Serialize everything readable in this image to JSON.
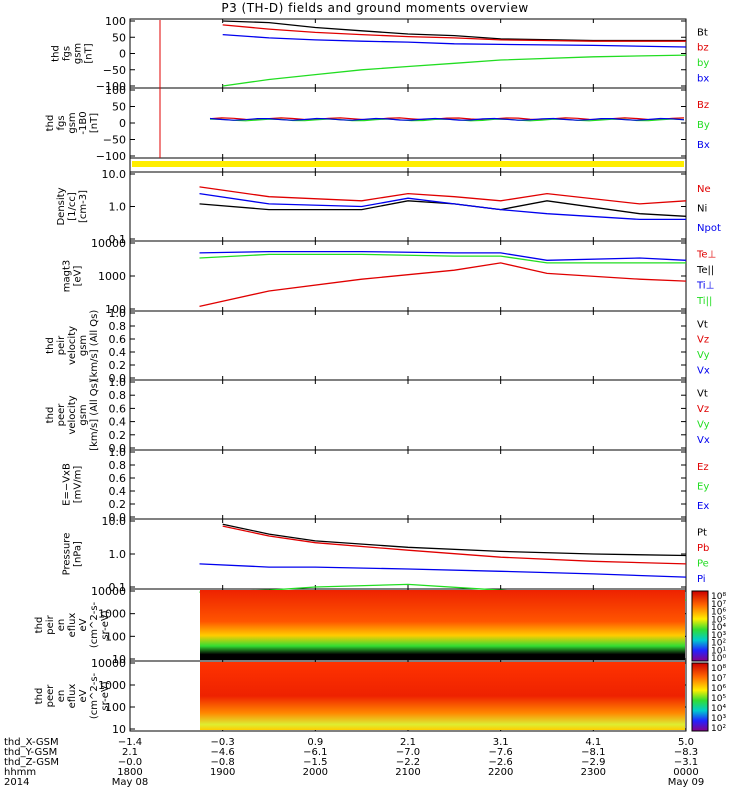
{
  "title": "P3 (TH-D) fields and ground moments overview",
  "colors": {
    "black": "#000000",
    "red": "#e00000",
    "green": "#22dd22",
    "blue": "#0000ee",
    "yellow": "#ffee00"
  },
  "panels": [
    {
      "id": "fgs",
      "ylabel": [
        "thd",
        "fgs",
        "gsm",
        "[nT]"
      ],
      "yticks": [
        "100",
        "50",
        "0",
        "−50",
        "−100"
      ],
      "legend": [
        {
          "t": "Bt",
          "c": "black"
        },
        {
          "t": "bz",
          "c": "red"
        },
        {
          "t": "by",
          "c": "green"
        },
        {
          "t": "bx",
          "c": "blue"
        }
      ]
    },
    {
      "id": "fgs2",
      "ylabel": [
        "thd",
        "fgs",
        "gsm",
        "-1B0",
        "[nT]"
      ],
      "yticks": [
        "100",
        "50",
        "0",
        "−50",
        "−100"
      ],
      "legend": [
        {
          "t": "Bz",
          "c": "red"
        },
        {
          "t": "By",
          "c": "green"
        },
        {
          "t": "Bx",
          "c": "blue"
        }
      ]
    },
    {
      "id": "flag",
      "ylabel": [],
      "yticks": [],
      "legend": []
    },
    {
      "id": "density",
      "ylabel": [
        "Density",
        "[1/cc]",
        "[cm-3]"
      ],
      "yticks": [
        "10.0",
        "1.0",
        "0.1"
      ],
      "legend": [
        {
          "t": "Ne",
          "c": "red"
        },
        {
          "t": "Ni",
          "c": "black"
        },
        {
          "t": "Npot",
          "c": "blue"
        }
      ]
    },
    {
      "id": "temp",
      "ylabel": [
        "magt3",
        "[eV]"
      ],
      "yticks": [
        "10000",
        "1000",
        "100"
      ],
      "legend": [
        {
          "t": "Te⊥",
          "c": "red"
        },
        {
          "t": "Te||",
          "c": "black"
        },
        {
          "t": "Ti⊥",
          "c": "blue"
        },
        {
          "t": "Ti||",
          "c": "green"
        }
      ]
    },
    {
      "id": "vi",
      "ylabel": [
        "thd",
        "peir",
        "velocity",
        "gsm",
        "[km/s] (All Qs)"
      ],
      "yticks": [
        "1.0",
        "0.8",
        "0.6",
        "0.4",
        "0.2",
        "0.0"
      ],
      "legend": [
        {
          "t": "Vt",
          "c": "black"
        },
        {
          "t": "Vz",
          "c": "red"
        },
        {
          "t": "Vy",
          "c": "green"
        },
        {
          "t": "Vx",
          "c": "blue"
        }
      ]
    },
    {
      "id": "ve",
      "ylabel": [
        "thd",
        "peer",
        "velocity",
        "gsm",
        "[km/s] (All Qs)"
      ],
      "yticks": [
        "1.0",
        "0.8",
        "0.6",
        "0.4",
        "0.2",
        "0.0"
      ],
      "legend": [
        {
          "t": "Vt",
          "c": "black"
        },
        {
          "t": "Vz",
          "c": "red"
        },
        {
          "t": "Vy",
          "c": "green"
        },
        {
          "t": "Vx",
          "c": "blue"
        }
      ]
    },
    {
      "id": "efield",
      "ylabel": [
        "E=−VxB",
        "[mV/m]"
      ],
      "yticks": [
        "1.0",
        "0.8",
        "0.6",
        "0.4",
        "0.2",
        "0.0"
      ],
      "legend": [
        {
          "t": "Ez",
          "c": "red"
        },
        {
          "t": "Ey",
          "c": "green"
        },
        {
          "t": "Ex",
          "c": "blue"
        }
      ]
    },
    {
      "id": "pressure",
      "ylabel": [
        "Pressure",
        "[nPa]"
      ],
      "yticks": [
        "10.0",
        "1.0",
        "0.1"
      ],
      "legend": [
        {
          "t": "Pt",
          "c": "black"
        },
        {
          "t": "Pb",
          "c": "red"
        },
        {
          "t": "Pe",
          "c": "green"
        },
        {
          "t": "Pi",
          "c": "blue"
        }
      ]
    },
    {
      "id": "ionspec",
      "ylabel": [
        "thd",
        "peir",
        "en",
        "eflux",
        "eV",
        "(cm^2-s-",
        "sr-eV)"
      ],
      "yticks": [
        "10000",
        "1000",
        "100",
        "10"
      ],
      "legend": []
    },
    {
      "id": "espec",
      "ylabel": [
        "thd",
        "peer",
        "en",
        "eflux",
        "eV",
        "(cm^2-s-",
        "sr-eV)"
      ],
      "yticks": [
        "10000",
        "1000",
        "100",
        "10"
      ],
      "legend": []
    }
  ],
  "colorbar1": [
    "10⁸",
    "10⁷",
    "10⁶",
    "10⁵",
    "10⁴",
    "10³",
    "10²",
    "10¹",
    "10⁰"
  ],
  "colorbar2": [
    "10⁸",
    "10⁷",
    "10⁶",
    "10⁵",
    "10⁴",
    "10³",
    "10²"
  ],
  "xaxis": {
    "rows": [
      {
        "label": "thd_X-GSM",
        "vals": [
          "−1.4",
          "−0.3",
          "0.9",
          "2.1",
          "3.1",
          "4.1",
          "5.0"
        ]
      },
      {
        "label": "thd_Y-GSM",
        "vals": [
          "2.1",
          "−4.6",
          "−6.1",
          "−7.0",
          "−7.6",
          "−8.1",
          "−8.3"
        ]
      },
      {
        "label": "thd_Z-GSM",
        "vals": [
          "−0.0",
          "−0.8",
          "−1.5",
          "−2.2",
          "−2.6",
          "−2.9",
          "−3.1"
        ]
      },
      {
        "label": "hhmm",
        "vals": [
          "1800",
          "1900",
          "2000",
          "2100",
          "2200",
          "2300",
          "0000"
        ]
      },
      {
        "label": "2014",
        "vals": [
          "May 08",
          "",
          "",
          "",
          "",
          "",
          "May 09"
        ]
      }
    ]
  },
  "chart_data": {
    "type": "line",
    "title": "P3 (TH-D) fields and ground moments overview",
    "x_time_range": [
      "2014-05-08 18:00",
      "2014-05-09 00:00"
    ],
    "series": [
      {
        "panel": "fgs",
        "name": "Bt",
        "x": [
          "19:00",
          "19:30",
          "20:00",
          "20:30",
          "21:00",
          "21:30",
          "22:00",
          "23:00",
          "00:00"
        ],
        "values": [
          100,
          95,
          80,
          70,
          60,
          55,
          45,
          40,
          40
        ]
      },
      {
        "panel": "fgs",
        "name": "bz",
        "x": [
          "19:00",
          "19:30",
          "20:00",
          "20:30",
          "21:00",
          "21:30",
          "22:00",
          "23:00",
          "00:00"
        ],
        "values": [
          88,
          75,
          65,
          58,
          52,
          48,
          42,
          38,
          38
        ]
      },
      {
        "panel": "fgs",
        "name": "by",
        "x": [
          "19:00",
          "19:30",
          "20:00",
          "20:30",
          "21:00",
          "21:30",
          "22:00",
          "23:00",
          "00:00"
        ],
        "values": [
          -100,
          -80,
          -65,
          -50,
          -40,
          -30,
          -20,
          -10,
          -5
        ]
      },
      {
        "panel": "fgs",
        "name": "bx",
        "x": [
          "19:00",
          "19:30",
          "20:00",
          "20:30",
          "21:00",
          "21:30",
          "22:00",
          "23:00",
          "00:00"
        ],
        "values": [
          58,
          48,
          42,
          38,
          35,
          30,
          28,
          25,
          20
        ]
      },
      {
        "panel": "density",
        "name": "Ne",
        "x": [
          "18:45",
          "19:30",
          "20:30",
          "21:00",
          "21:30",
          "22:00",
          "22:30",
          "23:30",
          "00:00"
        ],
        "values": [
          4,
          2,
          1.5,
          2.5,
          2,
          1.5,
          2.5,
          1.2,
          1.5
        ]
      },
      {
        "panel": "density",
        "name": "Ni",
        "x": [
          "18:45",
          "19:30",
          "20:30",
          "21:00",
          "21:30",
          "22:00",
          "22:30",
          "23:30",
          "00:00"
        ],
        "values": [
          1.2,
          0.8,
          0.8,
          1.5,
          1.2,
          0.8,
          1.5,
          0.6,
          0.5
        ]
      },
      {
        "panel": "density",
        "name": "Npot",
        "x": [
          "18:45",
          "19:30",
          "20:30",
          "21:00",
          "21:30",
          "22:00",
          "22:30",
          "23:30",
          "00:00"
        ],
        "values": [
          2.5,
          1.2,
          1,
          1.8,
          1.2,
          0.8,
          0.6,
          0.4,
          0.4
        ]
      },
      {
        "panel": "temp",
        "name": "Te⊥",
        "x": [
          "18:45",
          "19:30",
          "20:30",
          "21:30",
          "22:00",
          "22:30",
          "23:30",
          "00:00"
        ],
        "values": [
          120,
          350,
          800,
          1500,
          2500,
          1200,
          800,
          700
        ]
      },
      {
        "panel": "temp",
        "name": "Ti⊥",
        "x": [
          "18:45",
          "19:30",
          "20:30",
          "21:30",
          "22:00",
          "22:30",
          "23:30",
          "00:00"
        ],
        "values": [
          5000,
          5500,
          5500,
          5000,
          5000,
          3000,
          3500,
          3000
        ]
      },
      {
        "panel": "temp",
        "name": "Ti||",
        "x": [
          "18:45",
          "19:30",
          "20:30",
          "21:30",
          "22:00",
          "22:30",
          "23:30",
          "00:00"
        ],
        "values": [
          3500,
          4500,
          4500,
          4000,
          4000,
          2500,
          2500,
          2500
        ]
      },
      {
        "panel": "pressure",
        "name": "Pt",
        "x": [
          "19:00",
          "19:30",
          "20:00",
          "21:00",
          "22:00",
          "23:00",
          "00:00"
        ],
        "values": [
          8,
          4,
          2.5,
          1.6,
          1.2,
          1,
          0.9
        ]
      },
      {
        "panel": "pressure",
        "name": "Pb",
        "x": [
          "19:00",
          "19:30",
          "20:00",
          "21:00",
          "22:00",
          "23:00",
          "00:00"
        ],
        "values": [
          7,
          3.5,
          2.2,
          1.3,
          0.8,
          0.6,
          0.5
        ]
      },
      {
        "panel": "pressure",
        "name": "Pe",
        "x": [
          "18:45",
          "19:30",
          "20:00",
          "21:00",
          "22:00",
          "23:00",
          "00:00"
        ],
        "values": [
          0.07,
          0.08,
          0.1,
          0.12,
          0.08,
          0.05,
          0.04
        ]
      },
      {
        "panel": "pressure",
        "name": "Pi",
        "x": [
          "18:45",
          "19:30",
          "20:00",
          "21:00",
          "22:00",
          "23:00",
          "00:00"
        ],
        "values": [
          0.5,
          0.4,
          0.4,
          0.35,
          0.3,
          0.25,
          0.2
        ]
      }
    ]
  }
}
